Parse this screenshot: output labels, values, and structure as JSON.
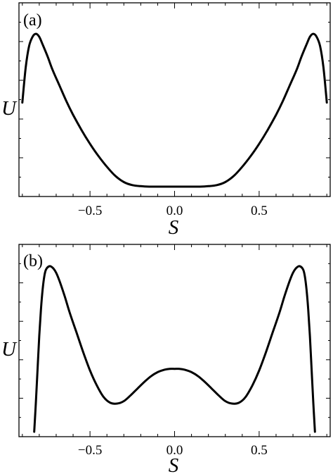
{
  "chart_data": [
    {
      "type": "line",
      "panel_label": "(a)",
      "xlabel": "S",
      "ylabel": "U",
      "xlim": [
        -0.92,
        0.92
      ],
      "x_ticks": [
        -0.5,
        0.0,
        0.5
      ],
      "x_tick_labels": [
        "−0.5",
        "0.0",
        "0.5"
      ],
      "ylim": [
        0,
        1.0
      ],
      "y_tick_labels": [],
      "grid": false,
      "series": [
        {
          "x": [
            -0.9,
            -0.88,
            -0.86,
            -0.84,
            -0.82,
            -0.8,
            -0.78,
            -0.75,
            -0.72,
            -0.68,
            -0.64,
            -0.6,
            -0.55,
            -0.5,
            -0.45,
            -0.4,
            -0.35,
            -0.3,
            -0.25,
            -0.2,
            -0.15,
            -0.1,
            -0.05,
            0.0,
            0.05,
            0.1,
            0.15,
            0.2,
            0.25,
            0.3,
            0.35,
            0.4,
            0.45,
            0.5,
            0.55,
            0.6,
            0.64,
            0.68,
            0.72,
            0.75,
            0.78,
            0.8,
            0.82,
            0.84,
            0.86,
            0.88,
            0.9
          ],
          "y": [
            0.55,
            0.78,
            0.92,
            0.98,
            1.0,
            0.98,
            0.93,
            0.85,
            0.76,
            0.66,
            0.56,
            0.47,
            0.37,
            0.28,
            0.2,
            0.13,
            0.07,
            0.03,
            0.01,
            0.003,
            0.0,
            0.0,
            0.0,
            0.0,
            0.0,
            0.0,
            0.0,
            0.003,
            0.01,
            0.03,
            0.07,
            0.13,
            0.2,
            0.28,
            0.37,
            0.47,
            0.56,
            0.66,
            0.76,
            0.85,
            0.93,
            0.98,
            1.0,
            0.98,
            0.92,
            0.78,
            0.55
          ]
        }
      ]
    },
    {
      "type": "line",
      "panel_label": "(b)",
      "xlabel": "S",
      "ylabel": "U",
      "xlim": [
        -0.92,
        0.92
      ],
      "x_ticks": [
        -0.5,
        0.0,
        0.5
      ],
      "x_tick_labels": [
        "−0.5",
        "0.0",
        "0.5"
      ],
      "ylim": [
        0,
        1.0
      ],
      "y_tick_labels": [],
      "grid": false,
      "series": [
        {
          "x": [
            -0.83,
            -0.82,
            -0.81,
            -0.8,
            -0.79,
            -0.78,
            -0.77,
            -0.76,
            -0.74,
            -0.72,
            -0.7,
            -0.68,
            -0.65,
            -0.62,
            -0.58,
            -0.54,
            -0.5,
            -0.46,
            -0.42,
            -0.38,
            -0.34,
            -0.3,
            -0.26,
            -0.22,
            -0.18,
            -0.14,
            -0.1,
            -0.06,
            -0.03,
            0.0,
            0.03,
            0.06,
            0.1,
            0.14,
            0.18,
            0.22,
            0.26,
            0.3,
            0.34,
            0.38,
            0.42,
            0.46,
            0.5,
            0.54,
            0.58,
            0.62,
            0.65,
            0.68,
            0.7,
            0.72,
            0.74,
            0.76,
            0.77,
            0.78,
            0.79,
            0.8,
            0.81,
            0.82,
            0.83
          ],
          "y": [
            0.0,
            0.18,
            0.38,
            0.58,
            0.74,
            0.86,
            0.94,
            0.98,
            1.0,
            0.99,
            0.96,
            0.91,
            0.82,
            0.72,
            0.6,
            0.48,
            0.37,
            0.28,
            0.21,
            0.175,
            0.17,
            0.185,
            0.22,
            0.26,
            0.3,
            0.335,
            0.36,
            0.375,
            0.38,
            0.38,
            0.38,
            0.375,
            0.36,
            0.335,
            0.3,
            0.26,
            0.22,
            0.185,
            0.17,
            0.175,
            0.21,
            0.28,
            0.37,
            0.48,
            0.6,
            0.72,
            0.82,
            0.91,
            0.96,
            0.99,
            1.0,
            0.98,
            0.94,
            0.86,
            0.74,
            0.58,
            0.38,
            0.18,
            0.0
          ]
        }
      ]
    }
  ]
}
